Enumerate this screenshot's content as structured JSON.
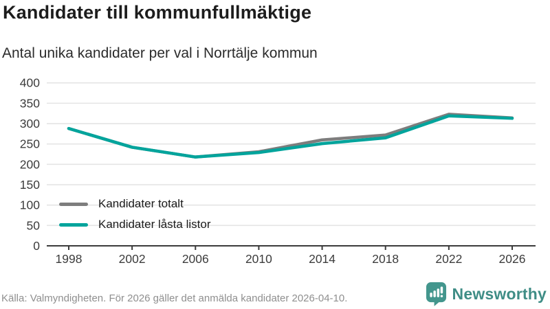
{
  "header": {
    "title": "Kandidater till kommunfullmäktige",
    "subtitle": "Antal unika kandidater per val i Norrtälje kommun"
  },
  "chart_data": {
    "type": "line",
    "x": [
      1998,
      2002,
      2006,
      2010,
      2014,
      2018,
      2022,
      2026
    ],
    "series": [
      {
        "name": "Kandidater totalt",
        "color": "#7d7d7d",
        "values": [
          288,
          242,
          218,
          231,
          260,
          272,
          323,
          314
        ]
      },
      {
        "name": "Kandidater låsta listor",
        "color": "#00a49c",
        "values": [
          288,
          242,
          218,
          229,
          251,
          265,
          319,
          313
        ]
      }
    ],
    "ylim": [
      0,
      400
    ],
    "ytick_step": 50,
    "yticks": [
      0,
      50,
      100,
      150,
      200,
      250,
      300,
      350,
      400
    ],
    "grid": true,
    "legend_position": "inside-bottom-left",
    "notes": "Teal series drawn on top of gray; series overlap 1998-2006"
  },
  "footer": {
    "source": "Källa: Valmyndigheten. För 2026 gäller det anmälda kandidater 2026-04-10.",
    "brand": "Newsworthy"
  },
  "colors": {
    "accent_teal": "#00a49c",
    "series_gray": "#7d7d7d",
    "gridline": "#e4e4e4",
    "axis_line": "#3a3a3a",
    "axis_text": "#3c3c3c",
    "brand_teal": "#3f8d86",
    "brand_icon": "#43968d"
  },
  "icons": {
    "brand_icon": "newsworthy-speech-bubble-bar-chart-icon"
  }
}
